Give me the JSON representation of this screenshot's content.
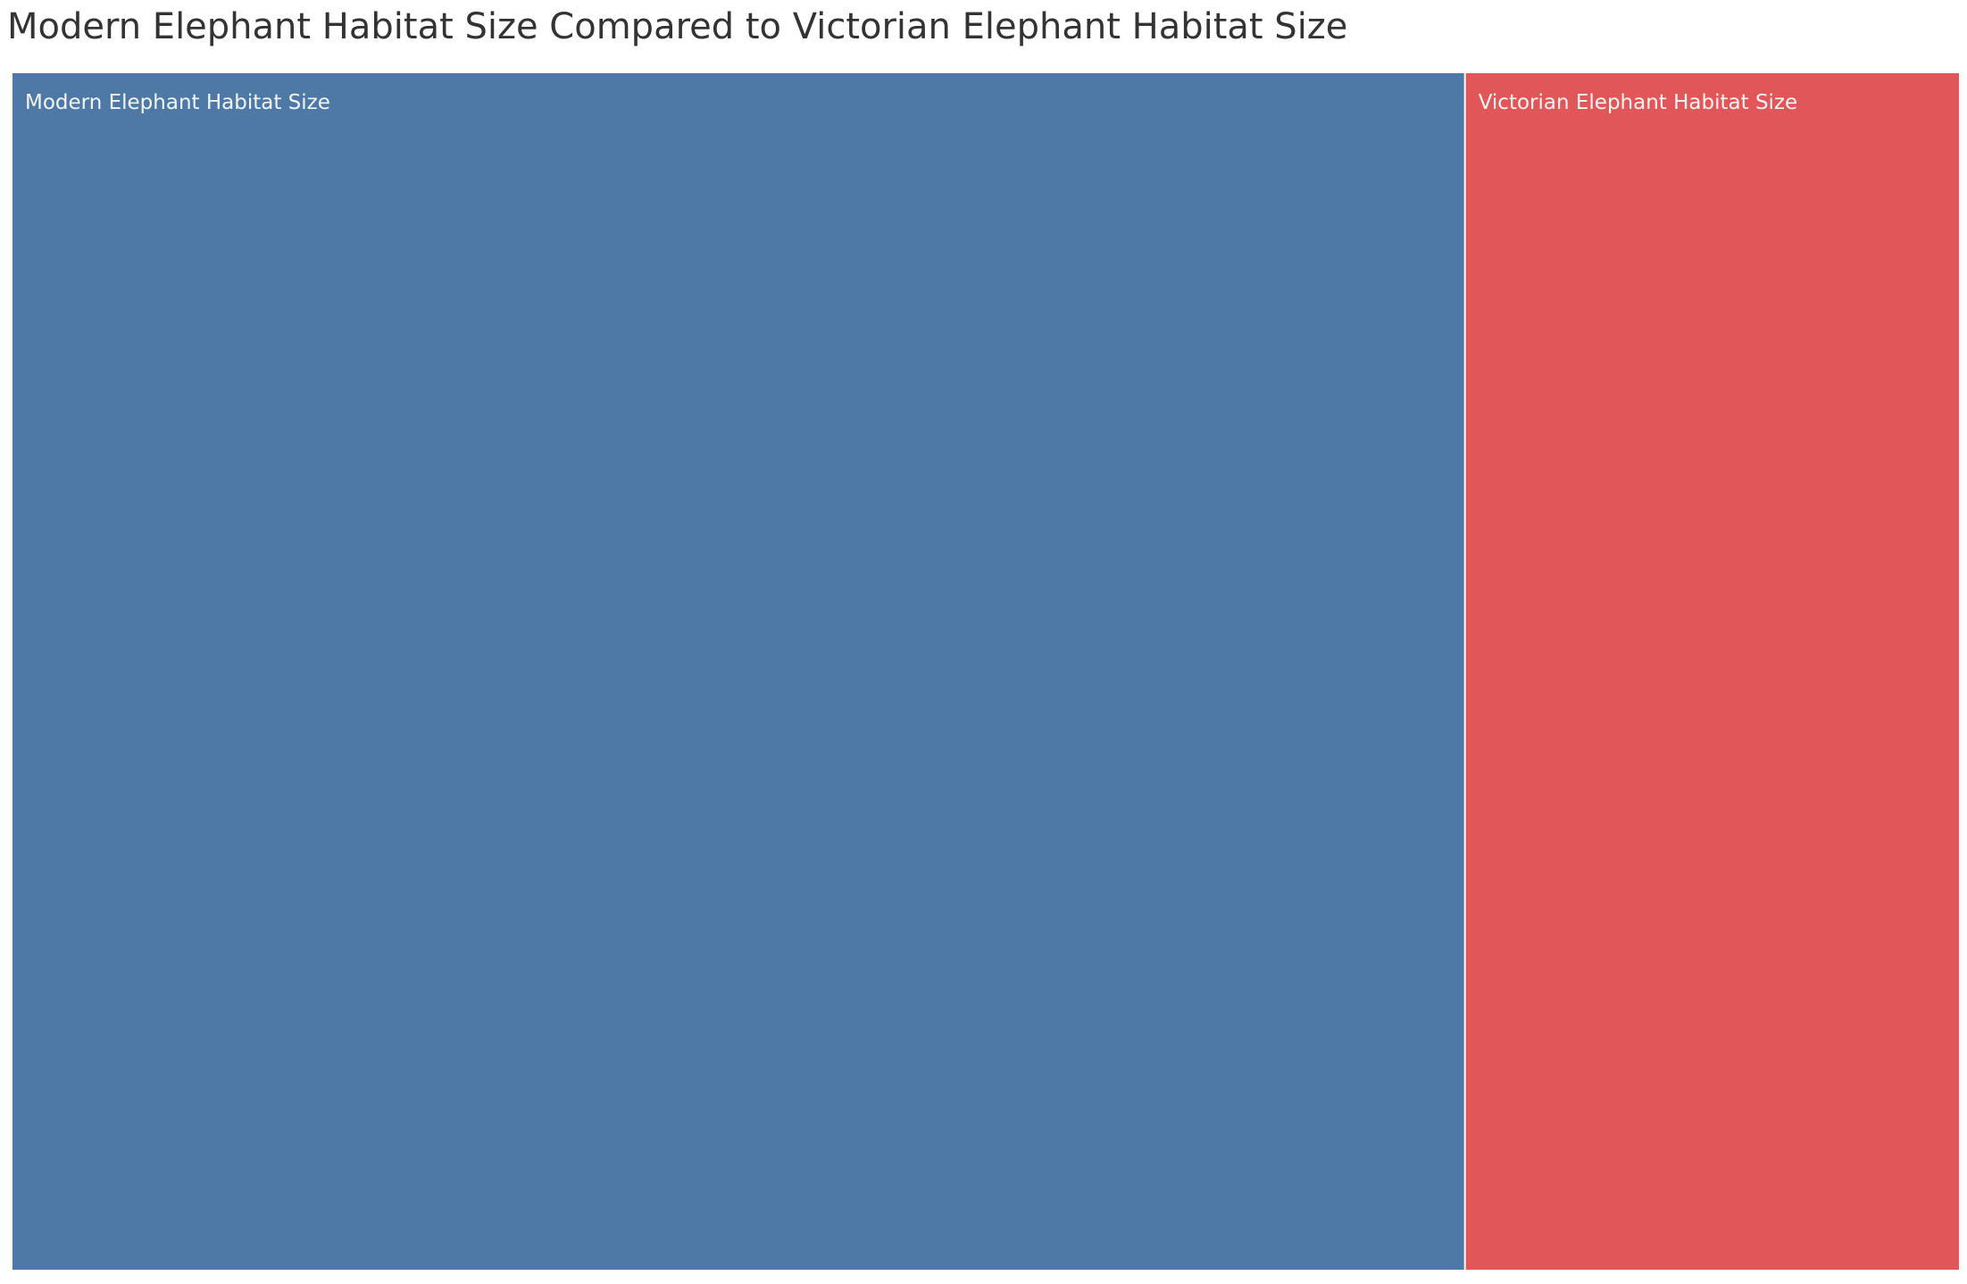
{
  "chart_data": {
    "type": "treemap",
    "title": "Modern Elephant Habitat Size Compared to Victorian Elephant Habitat Size",
    "categories": [
      "Modern Elephant Habitat Size",
      "Victorian Elephant Habitat Size"
    ],
    "values": [
      2.94,
      1
    ],
    "colors": [
      "#4e79a7",
      "#e15759"
    ],
    "legend": "none",
    "grid": false
  }
}
